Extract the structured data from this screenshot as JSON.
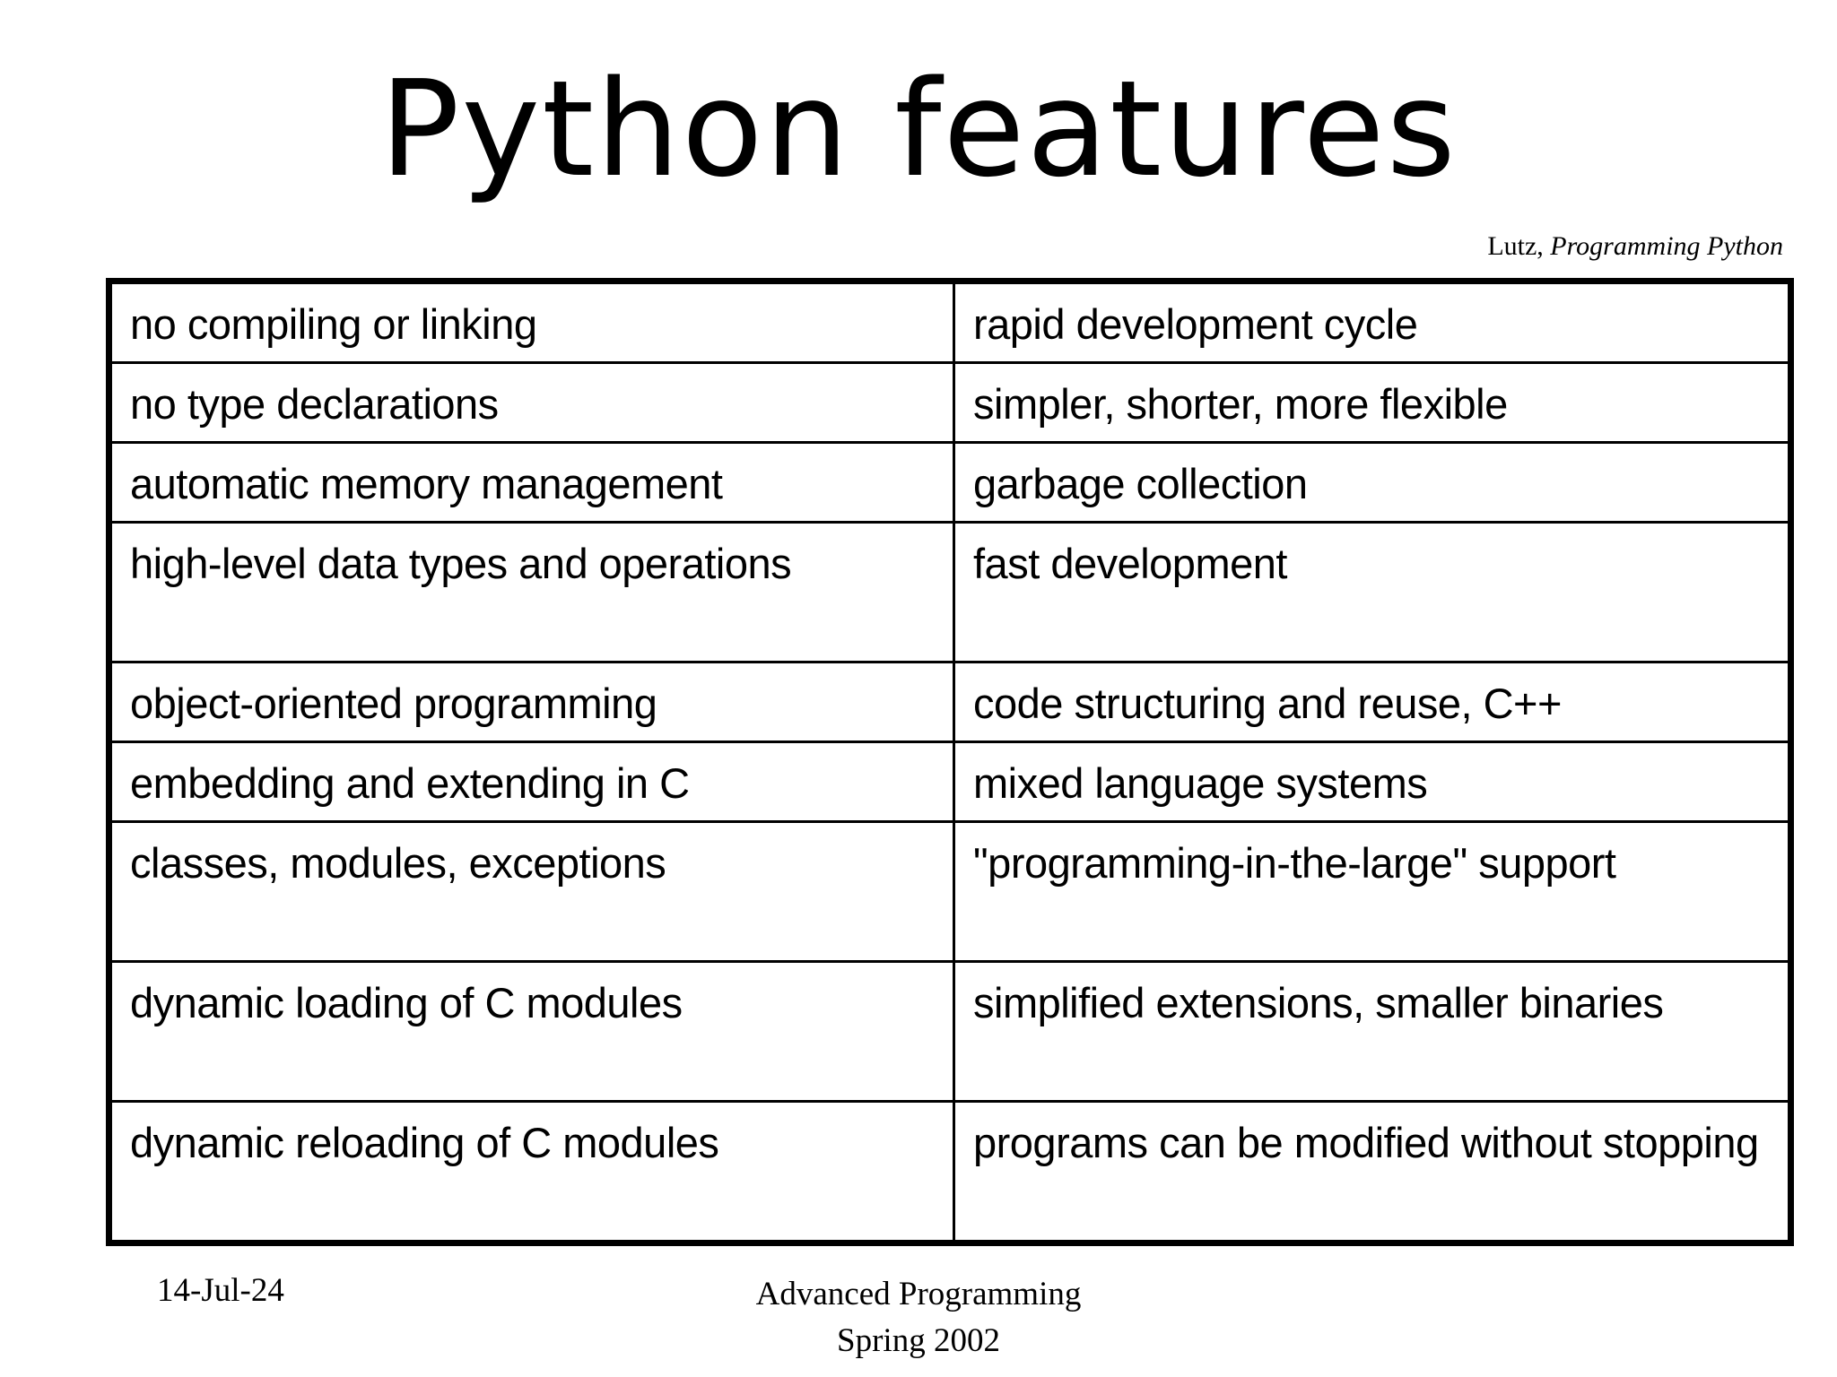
{
  "slide": {
    "title": "Python features",
    "attribution": {
      "prefix": "Lutz, ",
      "book": "Programming Python"
    },
    "table": {
      "rows": [
        {
          "left": "no compiling or linking",
          "right": "rapid development cycle"
        },
        {
          "left": "no type declarations",
          "right": "simpler, shorter, more flexible"
        },
        {
          "left": "automatic memory management",
          "right": "garbage collection"
        },
        {
          "left": "high-level data types and operations",
          "right": "fast development"
        },
        {
          "left": "object-oriented programming",
          "right": "code structuring and reuse, C++"
        },
        {
          "left": "embedding and extending in C",
          "right": "mixed language systems"
        },
        {
          "left": "classes, modules, exceptions",
          "right": "\"programming-in-the-large\" support"
        },
        {
          "left": "dynamic loading of C modules",
          "right": "simplified extensions, smaller binaries"
        },
        {
          "left": "dynamic reloading of C modules",
          "right": "programs can be modified without stopping"
        }
      ]
    },
    "footer": {
      "date": "14-Jul-24",
      "course": "Advanced Programming",
      "term": "Spring 2002"
    },
    "colors": {
      "background": "#ffffff",
      "text": "#000000",
      "table_border": "#000000"
    }
  }
}
